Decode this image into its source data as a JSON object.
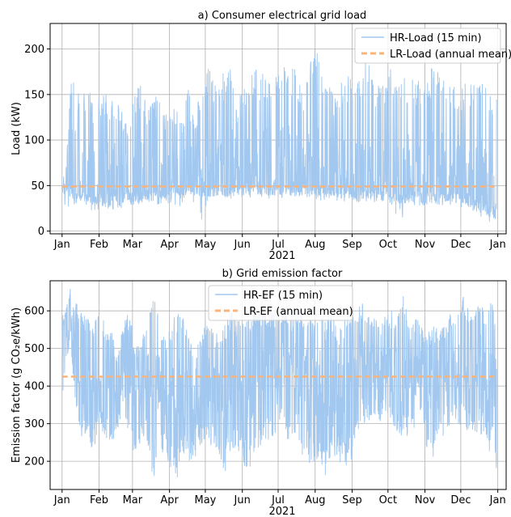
{
  "year_label": "2021",
  "chart_data": [
    {
      "type": "line",
      "title": "a) Consumer electrical grid load",
      "xlabel": "2021",
      "ylabel": "Load (kW)",
      "xlim": [
        "2020-12-22",
        "2022-01-08"
      ],
      "ylim": [
        -3,
        228
      ],
      "yticks": [
        0,
        50,
        100,
        150,
        200
      ],
      "xticks": [
        {
          "date": "2021-01-01",
          "label": "Jan"
        },
        {
          "date": "2021-02-01",
          "label": "Feb"
        },
        {
          "date": "2021-03-01",
          "label": "Mar"
        },
        {
          "date": "2021-04-01",
          "label": "Apr"
        },
        {
          "date": "2021-05-01",
          "label": "May"
        },
        {
          "date": "2021-06-01",
          "label": "Jun"
        },
        {
          "date": "2021-07-01",
          "label": "Jul"
        },
        {
          "date": "2021-08-01",
          "label": "Aug"
        },
        {
          "date": "2021-09-01",
          "label": "Sep"
        },
        {
          "date": "2021-10-01",
          "label": "Oct"
        },
        {
          "date": "2021-11-01",
          "label": "Nov"
        },
        {
          "date": "2021-12-01",
          "label": "Dec"
        },
        {
          "date": "2022-01-01",
          "label": "Jan"
        }
      ],
      "grid": true,
      "legend": "top-right",
      "series": [
        {
          "name": "HR-Load (15 min)",
          "color": "#a3c8f0",
          "style": "solid",
          "x": [
            "2021-01-01",
            "2021-01-04",
            "2021-01-08",
            "2021-01-12",
            "2021-01-18",
            "2021-01-23",
            "2021-01-28",
            "2021-02-02",
            "2021-02-08",
            "2021-02-14",
            "2021-02-20",
            "2021-02-25",
            "2021-03-03",
            "2021-03-08",
            "2021-03-13",
            "2021-03-19",
            "2021-03-25",
            "2021-03-31",
            "2021-04-06",
            "2021-04-11",
            "2021-04-17",
            "2021-04-22",
            "2021-04-28",
            "2021-05-04",
            "2021-05-10",
            "2021-05-15",
            "2021-05-22",
            "2021-05-28",
            "2021-06-03",
            "2021-06-09",
            "2021-06-15",
            "2021-06-21",
            "2021-06-27",
            "2021-07-03",
            "2021-07-09",
            "2021-07-15",
            "2021-07-22",
            "2021-07-28",
            "2021-08-01",
            "2021-08-06",
            "2021-08-12",
            "2021-08-18",
            "2021-08-24",
            "2021-08-30",
            "2021-09-05",
            "2021-09-11",
            "2021-09-17",
            "2021-09-23",
            "2021-09-29",
            "2021-10-03",
            "2021-10-08",
            "2021-10-14",
            "2021-10-20",
            "2021-10-26",
            "2021-11-01",
            "2021-11-07",
            "2021-11-13",
            "2021-11-19",
            "2021-11-25",
            "2021-12-01",
            "2021-12-07",
            "2021-12-13",
            "2021-12-19",
            "2021-12-25",
            "2021-12-31"
          ],
          "y_max": [
            60,
            63,
            172,
            170,
            150,
            165,
            138,
            148,
            150,
            148,
            138,
            120,
            158,
            160,
            141,
            155,
            140,
            125,
            140,
            120,
            158,
            117,
            168,
            180,
            165,
            172,
            178,
            140,
            165,
            182,
            175,
            170,
            165,
            185,
            178,
            180,
            150,
            185,
            215,
            172,
            165,
            150,
            165,
            175,
            165,
            190,
            178,
            160,
            168,
            183,
            165,
            170,
            168,
            172,
            170,
            180,
            178,
            168,
            160,
            162,
            165,
            166,
            168,
            148,
            163
          ],
          "y_min": [
            9,
            22,
            28,
            30,
            26,
            25,
            22,
            24,
            25,
            22,
            25,
            30,
            28,
            27,
            30,
            30,
            28,
            30,
            26,
            28,
            30,
            30,
            10,
            35,
            36,
            36,
            36,
            34,
            38,
            36,
            38,
            36,
            36,
            36,
            38,
            38,
            36,
            36,
            34,
            34,
            34,
            34,
            32,
            34,
            32,
            32,
            32,
            32,
            32,
            28,
            14,
            14,
            28,
            28,
            28,
            28,
            28,
            28,
            28,
            26,
            26,
            16,
            14,
            9,
            8
          ],
          "y_base": [
            45,
            47,
            42,
            40,
            38,
            36,
            35,
            35,
            36,
            36,
            36,
            37,
            38,
            38,
            39,
            40,
            40,
            42,
            42,
            42,
            44,
            45,
            44,
            44,
            44,
            45,
            44,
            45,
            45,
            46,
            46,
            46,
            46,
            46,
            47,
            47,
            46,
            46,
            45,
            44,
            44,
            44,
            43,
            43,
            42,
            42,
            42,
            42,
            42,
            38,
            36,
            36,
            38,
            38,
            38,
            38,
            38,
            38,
            38,
            36,
            36,
            30,
            26,
            22,
            20
          ]
        },
        {
          "name": "LR-Load (annual mean)",
          "color": "#f8b47a",
          "style": "dashed",
          "x": [
            "2021-01-01",
            "2021-12-31"
          ],
          "y": [
            49,
            49
          ]
        }
      ]
    },
    {
      "type": "line",
      "title": "b) Grid emission factor",
      "xlabel": "2021",
      "ylabel": "Emission factor (g CO₂e/kWh)",
      "xlim": [
        "2020-12-22",
        "2022-01-08"
      ],
      "ylim": [
        125,
        680
      ],
      "yticks": [
        200,
        300,
        400,
        500,
        600
      ],
      "xticks": [
        {
          "date": "2021-01-01",
          "label": "Jan"
        },
        {
          "date": "2021-02-01",
          "label": "Feb"
        },
        {
          "date": "2021-03-01",
          "label": "Mar"
        },
        {
          "date": "2021-04-01",
          "label": "Apr"
        },
        {
          "date": "2021-05-01",
          "label": "May"
        },
        {
          "date": "2021-06-01",
          "label": "Jun"
        },
        {
          "date": "2021-07-01",
          "label": "Jul"
        },
        {
          "date": "2021-08-01",
          "label": "Aug"
        },
        {
          "date": "2021-09-01",
          "label": "Sep"
        },
        {
          "date": "2021-10-01",
          "label": "Oct"
        },
        {
          "date": "2021-11-01",
          "label": "Nov"
        },
        {
          "date": "2021-12-01",
          "label": "Dec"
        },
        {
          "date": "2022-01-01",
          "label": "Jan"
        }
      ],
      "grid": true,
      "legend": "top-center",
      "series": [
        {
          "name": "HR-EF (15 min)",
          "color": "#a3c8f0",
          "style": "solid",
          "x": [
            "2021-01-01",
            "2021-01-04",
            "2021-01-08",
            "2021-01-12",
            "2021-01-17",
            "2021-01-22",
            "2021-01-27",
            "2021-02-01",
            "2021-02-06",
            "2021-02-11",
            "2021-02-16",
            "2021-02-21",
            "2021-02-26",
            "2021-03-03",
            "2021-03-08",
            "2021-03-13",
            "2021-03-18",
            "2021-03-23",
            "2021-03-28",
            "2021-04-02",
            "2021-04-07",
            "2021-04-12",
            "2021-04-17",
            "2021-04-22",
            "2021-04-27",
            "2021-05-02",
            "2021-05-07",
            "2021-05-12",
            "2021-05-17",
            "2021-05-22",
            "2021-05-27",
            "2021-06-01",
            "2021-06-06",
            "2021-06-11",
            "2021-06-16",
            "2021-06-21",
            "2021-06-26",
            "2021-07-01",
            "2021-07-06",
            "2021-07-11",
            "2021-07-16",
            "2021-07-21",
            "2021-07-26",
            "2021-07-31",
            "2021-08-05",
            "2021-08-10",
            "2021-08-15",
            "2021-08-20",
            "2021-08-25",
            "2021-08-30",
            "2021-09-04",
            "2021-09-09",
            "2021-09-14",
            "2021-09-19",
            "2021-09-24",
            "2021-09-29",
            "2021-10-04",
            "2021-10-09",
            "2021-10-14",
            "2021-10-19",
            "2021-10-24",
            "2021-10-29",
            "2021-11-03",
            "2021-11-08",
            "2021-11-13",
            "2021-11-18",
            "2021-11-23",
            "2021-11-28",
            "2021-12-03",
            "2021-12-08",
            "2021-12-13",
            "2021-12-18",
            "2021-12-23",
            "2021-12-28",
            "2021-12-31"
          ],
          "y_max": [
            585,
            600,
            660,
            630,
            600,
            580,
            560,
            600,
            570,
            560,
            480,
            560,
            600,
            520,
            510,
            600,
            635,
            620,
            520,
            560,
            600,
            610,
            560,
            470,
            540,
            590,
            560,
            530,
            560,
            600,
            580,
            580,
            590,
            610,
            600,
            610,
            600,
            600,
            610,
            580,
            620,
            600,
            590,
            560,
            600,
            580,
            600,
            540,
            580,
            600,
            600,
            620,
            610,
            590,
            560,
            600,
            600,
            590,
            640,
            560,
            590,
            560,
            540,
            560,
            550,
            560,
            600,
            590,
            640,
            600,
            610,
            620,
            600,
            650,
            490
          ],
          "y_min": [
            360,
            440,
            520,
            360,
            260,
            280,
            220,
            300,
            260,
            240,
            280,
            320,
            270,
            200,
            240,
            260,
            150,
            200,
            220,
            180,
            150,
            210,
            180,
            200,
            230,
            240,
            240,
            230,
            170,
            200,
            230,
            180,
            170,
            210,
            240,
            260,
            250,
            300,
            280,
            240,
            280,
            210,
            200,
            180,
            190,
            160,
            230,
            190,
            200,
            170,
            270,
            300,
            300,
            320,
            300,
            330,
            300,
            280,
            260,
            250,
            300,
            320,
            220,
            200,
            240,
            280,
            300,
            290,
            300,
            260,
            280,
            270,
            230,
            210,
            180
          ],
          "y_base": [
            520,
            540,
            580,
            480,
            420,
            410,
            380,
            440,
            420,
            400,
            380,
            430,
            420,
            380,
            370,
            420,
            380,
            400,
            380,
            360,
            370,
            400,
            360,
            340,
            380,
            420,
            400,
            390,
            370,
            400,
            400,
            380,
            380,
            420,
            440,
            430,
            440,
            450,
            460,
            430,
            450,
            420,
            420,
            400,
            410,
            380,
            420,
            380,
            400,
            400,
            460,
            470,
            460,
            460,
            430,
            460,
            440,
            430,
            440,
            420,
            430,
            440,
            400,
            390,
            410,
            430,
            460,
            450,
            470,
            440,
            460,
            470,
            440,
            460,
            300
          ]
        },
        {
          "name": "LR-EF (annual mean)",
          "color": "#f8b47a",
          "style": "dashed",
          "x": [
            "2021-01-01",
            "2021-12-31"
          ],
          "y": [
            425,
            425
          ]
        }
      ]
    }
  ]
}
